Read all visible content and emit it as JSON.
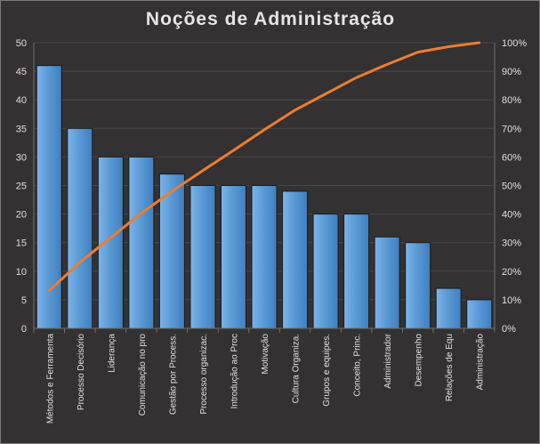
{
  "chart_data": {
    "type": "bar",
    "title": "Noções de Administração",
    "categories": [
      "Métodos e Ferramenta",
      "Processo Decisório",
      "Liderança",
      "Comunicação no pro",
      "Gestão por Process.",
      "Processo organizac.",
      "Introdução ao Proc",
      "Motivação",
      "Cultura Organiza.",
      "Grupos e equipes.",
      "Conceito, Princ.",
      "Administrador",
      "Desempenho",
      "Relações de Equ",
      "Administração"
    ],
    "series": [
      {
        "values": [
          46,
          35,
          30,
          30,
          27,
          25,
          25,
          25,
          24,
          20,
          20,
          16,
          15,
          7,
          5
        ]
      },
      {
        "values": [
          13.2,
          23.1,
          31.7,
          40.3,
          48.0,
          55.2,
          62.3,
          69.5,
          76.4,
          82.1,
          87.8,
          92.4,
          96.7,
          98.6,
          100
        ],
        "axis": "secondary"
      }
    ],
    "ylim": [
      0,
      50
    ],
    "y_ticks": [
      "0",
      "5",
      "10",
      "15",
      "20",
      "25",
      "30",
      "35",
      "40",
      "45",
      "50"
    ],
    "y2lim": [
      0,
      100
    ],
    "y2_ticks": [
      "0%",
      "10%",
      "20%",
      "30%",
      "40%",
      "50%",
      "60%",
      "70%",
      "80%",
      "90%",
      "100%"
    ],
    "grid": true,
    "legend": "none",
    "colors": {
      "bar": "#5b9bd5",
      "line": "#ed7d31",
      "background": "#333131",
      "grid": "#4a4a4a",
      "text": "#e0e0e0"
    }
  }
}
